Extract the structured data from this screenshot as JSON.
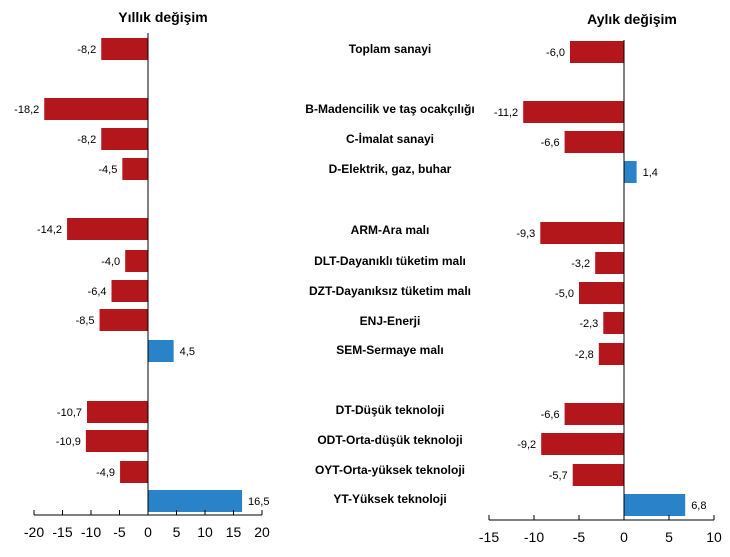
{
  "chart_data": [
    {
      "type": "bar",
      "orientation": "horizontal",
      "title": "Yıllık değişim",
      "categories": [
        "Toplam sanayi",
        "B-Madencilik ve taş ocakçılığı",
        "C-İmalat sanayi",
        "D-Elektrik, gaz, buhar",
        "ARM-Ara malı",
        "DLT-Dayanıklı tüketim malı",
        "DZT-Dayanıksız tüketim malı",
        "ENJ-Enerji",
        "SEM-Sermaye malı",
        "DT-Düşük teknoloji",
        "ODT-Orta-düşük teknoloji",
        "OYT-Orta-yüksek teknoloji",
        "YT-Yüksek teknoloji"
      ],
      "values": [
        -8.2,
        -18.2,
        -8.2,
        -4.5,
        -14.2,
        -4.0,
        -6.4,
        -8.5,
        4.5,
        -10.7,
        -10.9,
        -4.9,
        16.5
      ],
      "labels": [
        "-8,2",
        "-18,2",
        "-8,2",
        "-4,5",
        "-14,2",
        "-4,0",
        "-6,4",
        "-8,5",
        "4,5",
        "-10,7",
        "-10,9",
        "-4,9",
        "16,5"
      ],
      "xlim": [
        -20,
        20
      ],
      "xticks": [
        "-20",
        "-15",
        "-10",
        "-5",
        "0",
        "5",
        "10",
        "15",
        "20"
      ],
      "colors": {
        "negative": "#b3161b",
        "positive": "#2a82c8"
      }
    },
    {
      "type": "bar",
      "orientation": "horizontal",
      "title": "Aylık değişim",
      "categories": [
        "Toplam sanayi",
        "B-Madencilik ve taş ocakçılığı",
        "C-İmalat sanayi",
        "D-Elektrik, gaz, buhar",
        "ARM-Ara malı",
        "DLT-Dayanıklı tüketim malı",
        "DZT-Dayanıksız tüketim malı",
        "ENJ-Enerji",
        "SEM-Sermaye malı",
        "DT-Düşük teknoloji",
        "ODT-Orta-düşük teknoloji",
        "OYT-Orta-yüksek teknoloji",
        "YT-Yüksek teknoloji"
      ],
      "values": [
        -6.0,
        -11.2,
        -6.6,
        1.4,
        -9.3,
        -3.2,
        -5.0,
        -2.3,
        -2.8,
        -6.6,
        -9.2,
        -5.7,
        6.8
      ],
      "labels": [
        "-6,0",
        "-11,2",
        "-6,6",
        "1,4",
        "-9,3",
        "-3,2",
        "-5,0",
        "-2,3",
        "-2,8",
        "-6,6",
        "-9,2",
        "-5,7",
        "6,8"
      ],
      "xlim": [
        -15,
        10
      ],
      "xticks": [
        "-15",
        "-10",
        "-5",
        "0",
        "5",
        "10"
      ],
      "colors": {
        "negative": "#b3161b",
        "positive": "#2a82c8"
      }
    }
  ]
}
